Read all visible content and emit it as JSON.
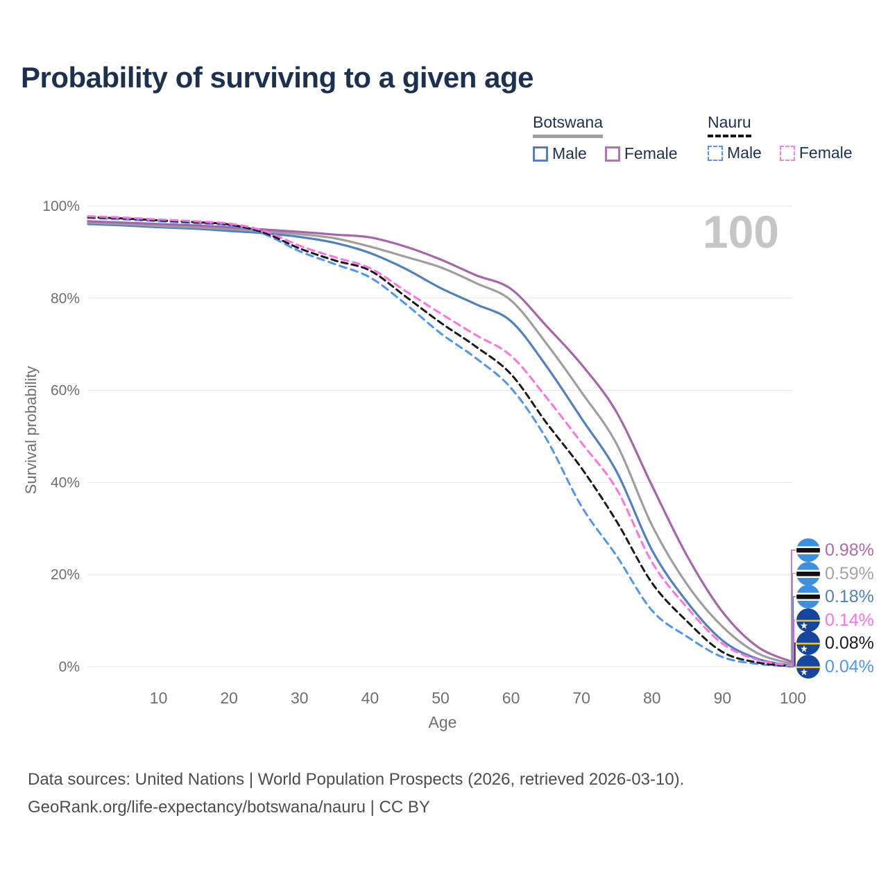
{
  "title": "Probability of surviving to a given age",
  "watermark_age": "100",
  "legend": {
    "groups": [
      {
        "country": "Botswana",
        "line_style": "solid",
        "underline_color": "#9e9e9e",
        "items": [
          {
            "label": "Male",
            "color": "#4f81c2",
            "dashed": false
          },
          {
            "label": "Female",
            "color": "#b073b0",
            "dashed": false
          }
        ]
      },
      {
        "country": "Nauru",
        "line_style": "dashed",
        "underline_color": "#141414",
        "items": [
          {
            "label": "Male",
            "color": "#4d94f7",
            "dashed": true
          },
          {
            "label": "Female",
            "color": "#ff7be4",
            "dashed": true
          }
        ]
      }
    ]
  },
  "y_axis": {
    "title": "Survival probability",
    "tick_labels": [
      "0%",
      "20%",
      "40%",
      "60%",
      "80%",
      "100%"
    ],
    "tick_values": [
      0,
      20,
      40,
      60,
      80,
      100
    ]
  },
  "x_axis": {
    "title": "Age",
    "tick_values": [
      10,
      20,
      30,
      40,
      50,
      60,
      70,
      80,
      90,
      100
    ]
  },
  "caption": {
    "line1": "Data sources: United Nations | World Population Prospects (2026, retrieved 2026-03-10).",
    "line2": "GeoRank.org/life-expectancy/botswana/nauru | CC BY"
  },
  "chart_data": {
    "type": "line",
    "title": "Probability of surviving to a given age",
    "xlabel": "Age",
    "ylabel": "Survival probability",
    "xlim": [
      0,
      100
    ],
    "ylim": [
      0,
      100
    ],
    "grid": "horizontal",
    "x": [
      0,
      5,
      10,
      15,
      20,
      25,
      30,
      35,
      40,
      45,
      50,
      55,
      60,
      65,
      70,
      75,
      80,
      85,
      90,
      95,
      100
    ],
    "series": [
      {
        "name": "Botswana Male",
        "country": "Botswana",
        "sex": "Male",
        "color": "#4f81c2",
        "dashed": false,
        "values": [
          96.1,
          95.8,
          95.4,
          95.1,
          94.6,
          94.1,
          93.3,
          92.0,
          89.8,
          86.4,
          82.2,
          78.7,
          75.0,
          65.3,
          53.9,
          42.3,
          25.3,
          14.0,
          5.7,
          1.7,
          0.18
        ]
      },
      {
        "name": "Botswana",
        "country": "Botswana",
        "sex": "Both",
        "color": "#9e9e9e",
        "dashed": false,
        "values": [
          96.4,
          96.1,
          95.7,
          95.4,
          95.0,
          94.5,
          93.9,
          93.0,
          91.2,
          89.0,
          86.7,
          83.3,
          79.5,
          70.2,
          59.6,
          48.3,
          30.7,
          17.8,
          8.7,
          2.9,
          0.59
        ]
      },
      {
        "name": "Botswana Female",
        "country": "Botswana",
        "sex": "Female",
        "color": "#a864a8",
        "dashed": false,
        "values": [
          96.7,
          96.4,
          96.1,
          95.8,
          95.4,
          94.9,
          94.4,
          93.8,
          93.2,
          91.2,
          88.4,
          85.0,
          82.0,
          74.0,
          65.6,
          55.2,
          39.3,
          24.0,
          11.9,
          4.3,
          0.98
        ]
      },
      {
        "name": "Nauru Male",
        "country": "Nauru",
        "sex": "Male",
        "color": "#4d94f7",
        "dashed": true,
        "values": [
          97.4,
          97.1,
          96.7,
          96.3,
          95.8,
          93.9,
          90.2,
          87.4,
          84.5,
          78.8,
          72.4,
          67.0,
          60.5,
          49.5,
          34.8,
          24.0,
          12.2,
          6.5,
          2.1,
          0.6,
          0.04
        ]
      },
      {
        "name": "Nauru",
        "country": "Nauru",
        "sex": "Both",
        "color": "#1a1a1a",
        "dashed": true,
        "values": [
          97.6,
          97.3,
          96.9,
          96.5,
          96.0,
          94.2,
          90.8,
          88.2,
          86.0,
          80.4,
          74.7,
          69.5,
          63.5,
          53.0,
          43.1,
          31.5,
          18.2,
          9.8,
          3.2,
          0.9,
          0.08
        ]
      },
      {
        "name": "Nauru Female",
        "country": "Nauru",
        "sex": "Female",
        "color": "#ff70e0",
        "dashed": true,
        "values": [
          97.8,
          97.5,
          97.1,
          96.7,
          96.2,
          94.6,
          91.4,
          88.9,
          86.5,
          81.6,
          76.7,
          72.0,
          67.5,
          58.5,
          48.6,
          38.5,
          22.7,
          12.8,
          5.0,
          1.5,
          0.14
        ]
      }
    ],
    "end_labels": [
      {
        "label": "0.98%",
        "series": "Botswana Female",
        "color": "#b069ad",
        "flag": "botswana"
      },
      {
        "label": "0.59%",
        "series": "Botswana",
        "color": "#a3a3a3",
        "flag": "botswana"
      },
      {
        "label": "0.18%",
        "series": "Botswana Male",
        "color": "#4f81c2",
        "flag": "botswana"
      },
      {
        "label": "0.14%",
        "series": "Nauru Female",
        "color": "#ff70e0",
        "flag": "nauru"
      },
      {
        "label": "0.08%",
        "series": "Nauru",
        "color": "#1a1a1a",
        "flag": "nauru"
      },
      {
        "label": "0.04%",
        "series": "Nauru Male",
        "color": "#4d94f7",
        "flag": "nauru"
      }
    ]
  }
}
